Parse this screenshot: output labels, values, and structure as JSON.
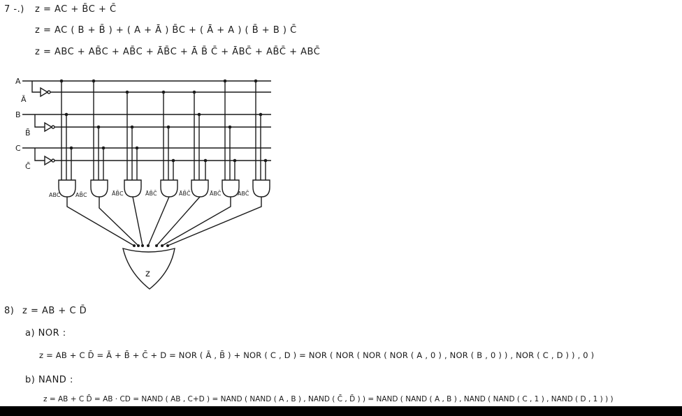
{
  "problem7": {
    "label": "7 -.)",
    "line1": "z = AC + B̄C + C̄",
    "line2": "z = AC ( B + B̄ ) + ( A + Ā ) B̄C + ( Ā + A ) ( B̄ + B ) C̄",
    "line3": "z = ABC + AB̄C + AB̄C + ĀB̄C + Ā B̄ C̄ + ĀBC̄ + AB̄C̄ + ABC̄"
  },
  "circuit": {
    "inputs": [
      "A",
      "Ā",
      "B",
      "B̄",
      "C",
      "C̄"
    ],
    "gate_labels": [
      "ABC",
      "AB̄C",
      "ĀB̄C",
      "ĀB̄C̄",
      "ĀB̄C̄",
      "ĀBC̄",
      "ABC̄"
    ],
    "output_label": "z"
  },
  "problem8": {
    "label": "8)",
    "expr": "z = AB + C D̄",
    "part_a_label": "a) NOR :",
    "part_a_line": "z = AB + C D̄ = Ā + B̄ + C̄ + D = NOR ( Ā , B̄ ) + NOR ( C , D ) = NOR ( NOR ( NOR ( NOR ( A , 0 ) , NOR ( B , 0 ) ) , NOR ( C , D ) ) , 0 )",
    "part_b_label": "b) NAND :",
    "part_b_line": "z = AB + C D̄ = AB · CD = NAND ( AB , C+D ) = NAND ( NAND ( A , B ) , NAND ( C̄ , D̄ ) ) = NAND ( NAND ( A , B ) , NAND ( NAND ( C , 1 ) , NAND ( D , 1 ) ) )"
  }
}
